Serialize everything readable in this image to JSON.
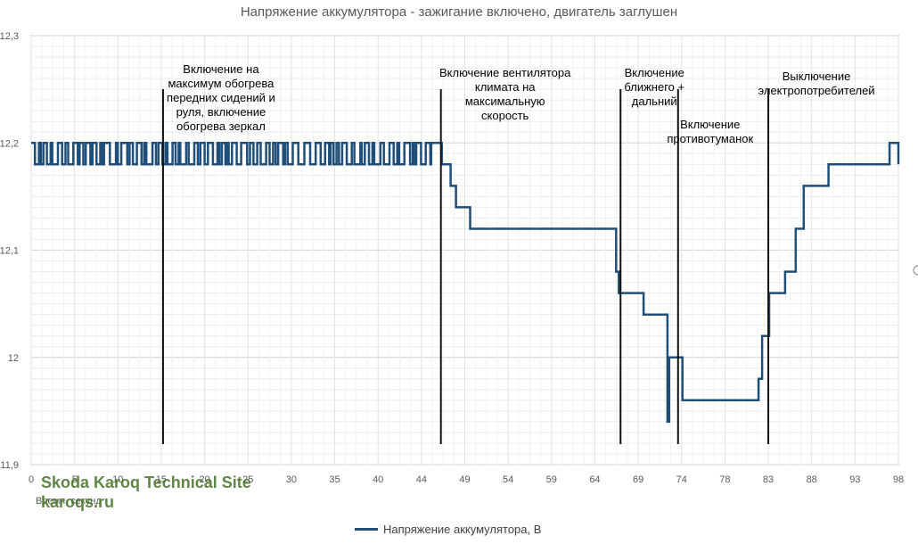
{
  "chart_data": {
    "type": "line",
    "title": "Напряжение аккумулятора - зажигание включено, двигатель заглушен",
    "xlabel": "Время, секунд",
    "ylabel": "",
    "x_ticks": [
      "0",
      "5",
      "10",
      "15",
      "20",
      "25",
      "30",
      "35",
      "40",
      "44",
      "49",
      "54",
      "59",
      "64",
      "69",
      "74",
      "78",
      "83",
      "88",
      "93",
      "98"
    ],
    "y_ticks": [
      "11,9",
      "12",
      "12,1",
      "12,2",
      "12,3"
    ],
    "ylim": [
      11.9,
      12.3
    ],
    "xlim": [
      0,
      98
    ],
    "legend": "Напряжение аккумулятора, В",
    "grid": true,
    "series": [
      {
        "name": "Напряжение аккумулятора, В",
        "color": "#1f4e79",
        "noise": [
          [
            0,
            45.2,
            12.18,
            12.2
          ]
        ],
        "steps": [
          [
            45.2,
            12.2
          ],
          [
            46.4,
            12.18
          ],
          [
            47.4,
            12.16
          ],
          [
            48,
            12.14
          ],
          [
            49.6,
            12.12
          ],
          [
            66.1,
            12.08
          ],
          [
            66.4,
            12.06
          ],
          [
            69.2,
            12.04
          ],
          [
            71.9,
            11.94
          ],
          [
            72.1,
            12.0
          ],
          [
            73.6,
            11.96
          ],
          [
            82.2,
            11.98
          ],
          [
            82.6,
            12.02
          ],
          [
            83.4,
            12.06
          ],
          [
            85.2,
            12.08
          ],
          [
            86.4,
            12.12
          ],
          [
            87.3,
            12.16
          ],
          [
            90.1,
            12.18
          ],
          [
            97.0,
            12.2
          ],
          [
            98,
            12.18
          ]
        ]
      }
    ],
    "markers": [
      {
        "x": 14.9,
        "label": "Включение на\nмаксимум обогрева\nпередних сидений и\nруля, включение\nобогрева зеркал"
      },
      {
        "x": 46.3,
        "label": "Включение вентилятора\nклимата на\nмаксимальную\nскорость"
      },
      {
        "x": 66.6,
        "label": "Включение\nближнего +\nдальний"
      },
      {
        "x": 73.1,
        "label": "Включение\nпротивотуманок"
      },
      {
        "x": 83.3,
        "label": "Выключение\nэлектропотребителей"
      }
    ]
  },
  "watermark": {
    "line1": "Skoda Karoq Technical Site",
    "line2": "karoqs.ru"
  }
}
